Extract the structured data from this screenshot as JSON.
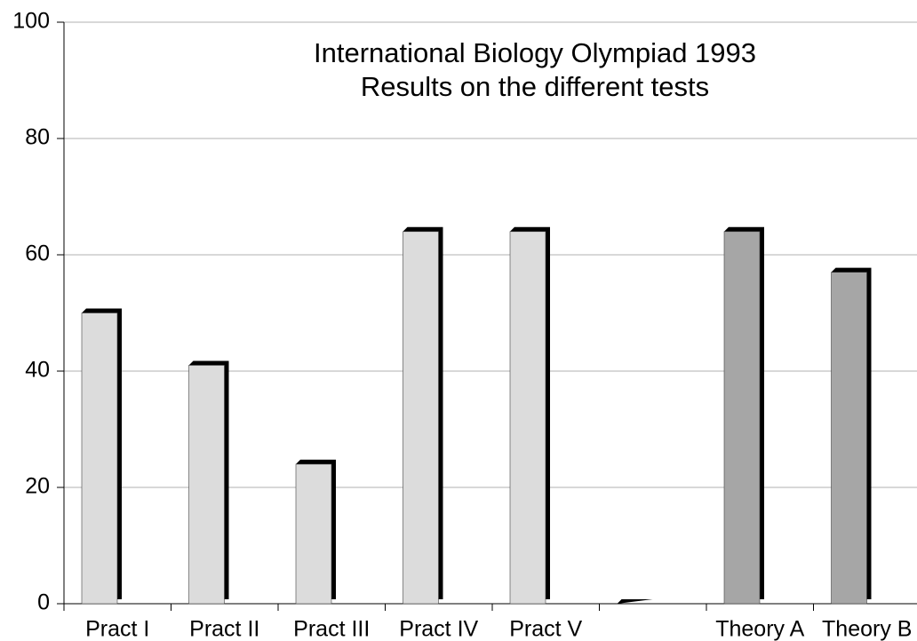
{
  "chart_data": {
    "type": "bar",
    "title": [
      "International Biology Olympiad 1993",
      "Results on the different tests"
    ],
    "categories": [
      "Pract I",
      "Pract II",
      "Pract III",
      "Pract IV",
      "Pract V",
      null,
      "Theory A",
      "Theory B"
    ],
    "values": [
      50,
      41,
      24,
      64,
      64,
      0,
      64,
      57
    ],
    "colors": [
      "#dcdcdc",
      "#dcdcdc",
      "#dcdcdc",
      "#dcdcdc",
      "#dcdcdc",
      "#dcdcdc",
      "#a6a6a6",
      "#a6a6a6"
    ],
    "ylim": [
      0,
      100
    ],
    "yticks": [
      0,
      20,
      40,
      60,
      80,
      100
    ],
    "grid": true
  }
}
